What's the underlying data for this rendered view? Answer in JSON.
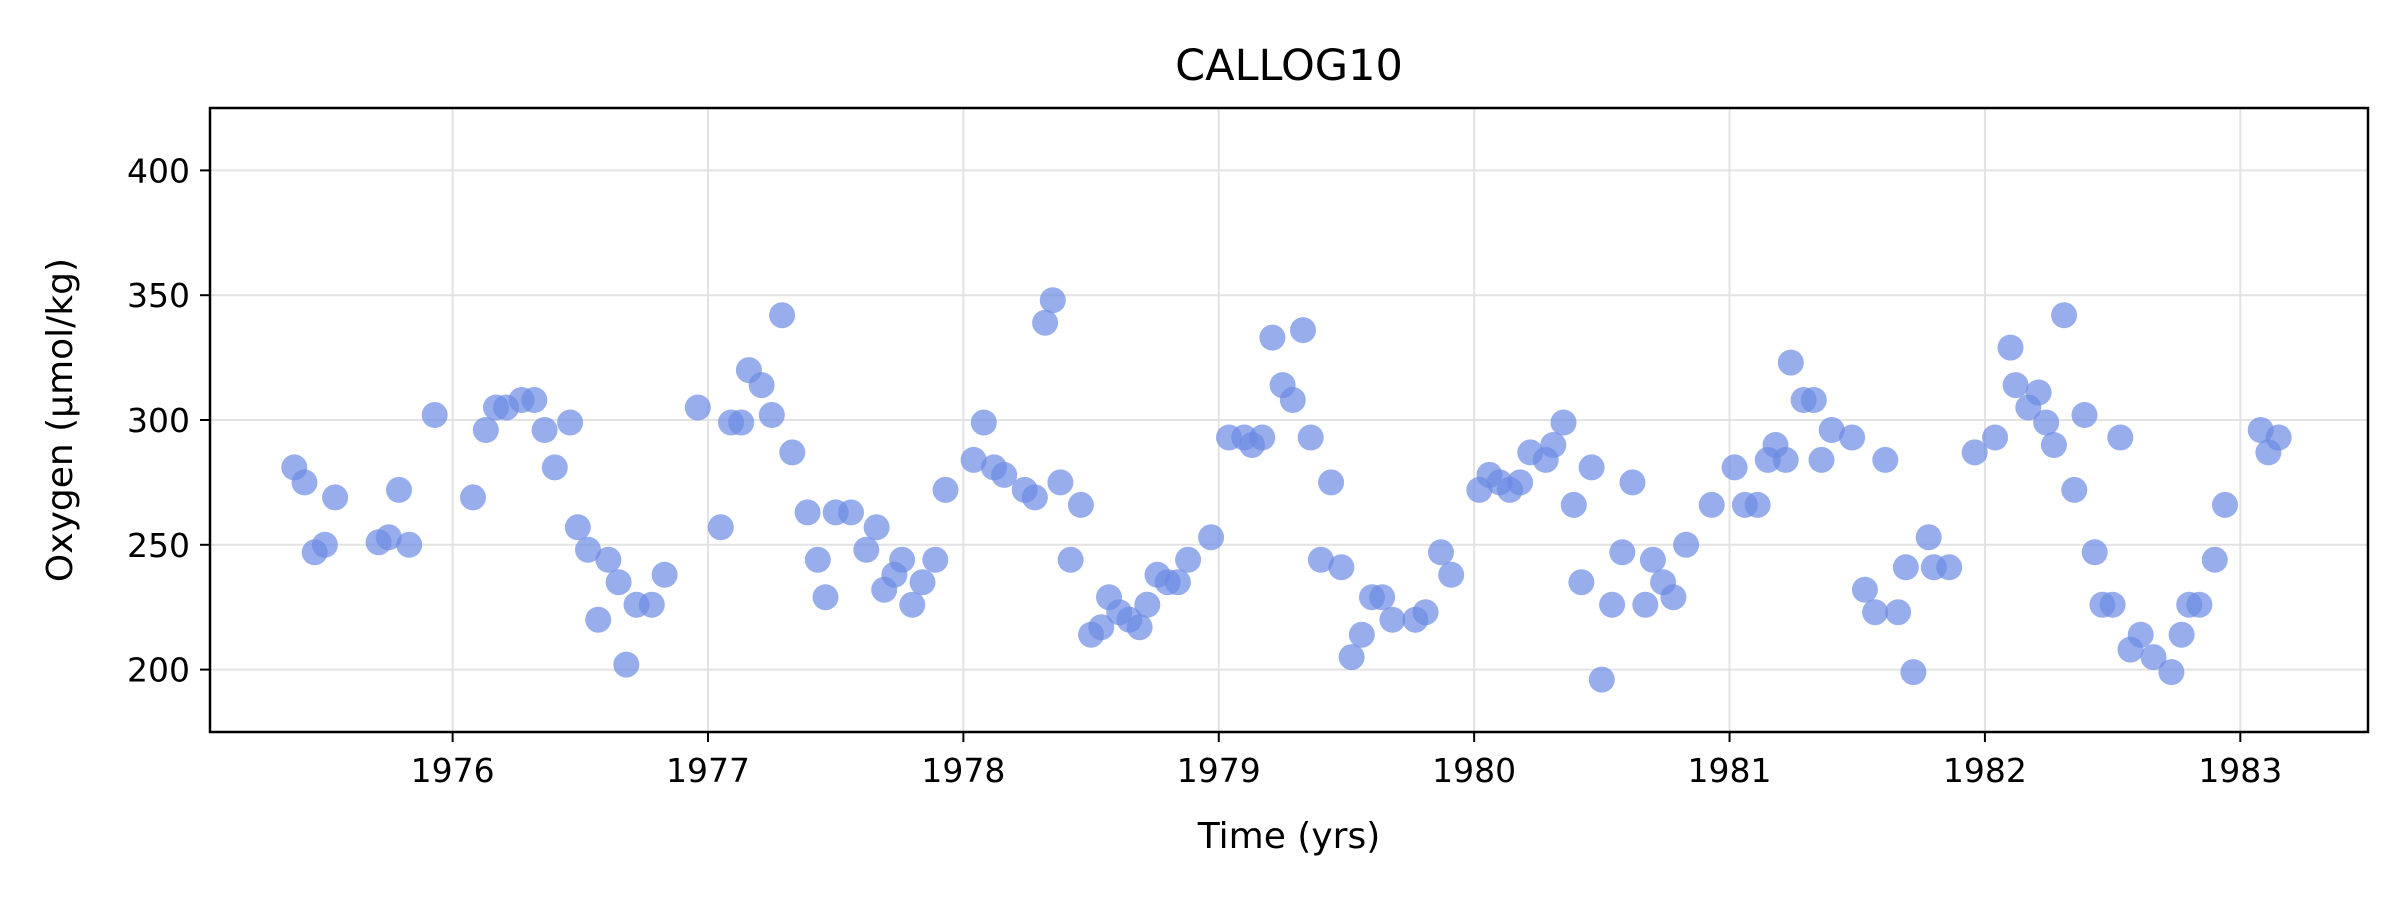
{
  "chart_data": {
    "type": "scatter",
    "title": "CALLOG10",
    "xlabel": "Time (yrs)",
    "ylabel": "Oxygen (µmol/kg)",
    "xlim": [
      1975.05,
      1983.5
    ],
    "ylim": [
      175,
      425
    ],
    "xticks": [
      1976,
      1977,
      1978,
      1979,
      1980,
      1981,
      1982,
      1983
    ],
    "yticks": [
      200,
      250,
      300,
      350,
      400
    ],
    "grid": true,
    "marker_color": "#6c8ae4",
    "marker_opacity": 0.7,
    "series": [
      {
        "points": [
          [
            1975.38,
            281
          ],
          [
            1975.42,
            275
          ],
          [
            1975.46,
            247
          ],
          [
            1975.5,
            250
          ],
          [
            1975.54,
            269
          ],
          [
            1975.71,
            251
          ],
          [
            1975.75,
            253
          ],
          [
            1975.79,
            272
          ],
          [
            1975.83,
            250
          ],
          [
            1975.93,
            302
          ],
          [
            1976.08,
            269
          ],
          [
            1976.13,
            296
          ],
          [
            1976.17,
            305
          ],
          [
            1976.21,
            305
          ],
          [
            1976.27,
            308
          ],
          [
            1976.32,
            308
          ],
          [
            1976.36,
            296
          ],
          [
            1976.4,
            281
          ],
          [
            1976.46,
            299
          ],
          [
            1976.49,
            257
          ],
          [
            1976.53,
            248
          ],
          [
            1976.57,
            220
          ],
          [
            1976.61,
            244
          ],
          [
            1976.65,
            235
          ],
          [
            1976.68,
            202
          ],
          [
            1976.72,
            226
          ],
          [
            1976.78,
            226
          ],
          [
            1976.83,
            238
          ],
          [
            1976.96,
            305
          ],
          [
            1977.05,
            257
          ],
          [
            1977.09,
            299
          ],
          [
            1977.13,
            299
          ],
          [
            1977.16,
            320
          ],
          [
            1977.21,
            314
          ],
          [
            1977.25,
            302
          ],
          [
            1977.29,
            342
          ],
          [
            1977.33,
            287
          ],
          [
            1977.39,
            263
          ],
          [
            1977.43,
            244
          ],
          [
            1977.46,
            229
          ],
          [
            1977.5,
            263
          ],
          [
            1977.56,
            263
          ],
          [
            1977.62,
            248
          ],
          [
            1977.66,
            257
          ],
          [
            1977.69,
            232
          ],
          [
            1977.73,
            238
          ],
          [
            1977.76,
            244
          ],
          [
            1977.8,
            226
          ],
          [
            1977.84,
            235
          ],
          [
            1977.89,
            244
          ],
          [
            1977.93,
            272
          ],
          [
            1978.04,
            284
          ],
          [
            1978.08,
            299
          ],
          [
            1978.12,
            281
          ],
          [
            1978.16,
            278
          ],
          [
            1978.24,
            272
          ],
          [
            1978.28,
            269
          ],
          [
            1978.32,
            339
          ],
          [
            1978.35,
            348
          ],
          [
            1978.38,
            275
          ],
          [
            1978.42,
            244
          ],
          [
            1978.46,
            266
          ],
          [
            1978.5,
            214
          ],
          [
            1978.54,
            217
          ],
          [
            1978.57,
            229
          ],
          [
            1978.61,
            223
          ],
          [
            1978.65,
            220
          ],
          [
            1978.69,
            217
          ],
          [
            1978.72,
            226
          ],
          [
            1978.76,
            238
          ],
          [
            1978.8,
            235
          ],
          [
            1978.84,
            235
          ],
          [
            1978.88,
            244
          ],
          [
            1978.97,
            253
          ],
          [
            1979.04,
            293
          ],
          [
            1979.1,
            293
          ],
          [
            1979.13,
            290
          ],
          [
            1979.17,
            293
          ],
          [
            1979.21,
            333
          ],
          [
            1979.25,
            314
          ],
          [
            1979.29,
            308
          ],
          [
            1979.33,
            336
          ],
          [
            1979.36,
            293
          ],
          [
            1979.4,
            244
          ],
          [
            1979.44,
            275
          ],
          [
            1979.48,
            241
          ],
          [
            1979.52,
            205
          ],
          [
            1979.56,
            214
          ],
          [
            1979.6,
            229
          ],
          [
            1979.64,
            229
          ],
          [
            1979.68,
            220
          ],
          [
            1979.77,
            220
          ],
          [
            1979.81,
            223
          ],
          [
            1979.87,
            247
          ],
          [
            1979.91,
            238
          ],
          [
            1980.02,
            272
          ],
          [
            1980.06,
            278
          ],
          [
            1980.1,
            275
          ],
          [
            1980.14,
            272
          ],
          [
            1980.18,
            275
          ],
          [
            1980.22,
            287
          ],
          [
            1980.28,
            284
          ],
          [
            1980.31,
            290
          ],
          [
            1980.35,
            299
          ],
          [
            1980.39,
            266
          ],
          [
            1980.42,
            235
          ],
          [
            1980.46,
            281
          ],
          [
            1980.5,
            196
          ],
          [
            1980.54,
            226
          ],
          [
            1980.58,
            247
          ],
          [
            1980.62,
            275
          ],
          [
            1980.67,
            226
          ],
          [
            1980.7,
            244
          ],
          [
            1980.74,
            235
          ],
          [
            1980.78,
            229
          ],
          [
            1980.83,
            250
          ],
          [
            1980.93,
            266
          ],
          [
            1981.02,
            281
          ],
          [
            1981.06,
            266
          ],
          [
            1981.11,
            266
          ],
          [
            1981.15,
            284
          ],
          [
            1981.18,
            290
          ],
          [
            1981.22,
            284
          ],
          [
            1981.24,
            323
          ],
          [
            1981.29,
            308
          ],
          [
            1981.33,
            308
          ],
          [
            1981.36,
            284
          ],
          [
            1981.4,
            296
          ],
          [
            1981.48,
            293
          ],
          [
            1981.53,
            232
          ],
          [
            1981.57,
            223
          ],
          [
            1981.61,
            284
          ],
          [
            1981.66,
            223
          ],
          [
            1981.69,
            241
          ],
          [
            1981.72,
            199
          ],
          [
            1981.78,
            253
          ],
          [
            1981.8,
            241
          ],
          [
            1981.86,
            241
          ],
          [
            1981.96,
            287
          ],
          [
            1982.04,
            293
          ],
          [
            1982.1,
            329
          ],
          [
            1982.12,
            314
          ],
          [
            1982.17,
            305
          ],
          [
            1982.21,
            311
          ],
          [
            1982.24,
            299
          ],
          [
            1982.27,
            290
          ],
          [
            1982.31,
            342
          ],
          [
            1982.35,
            272
          ],
          [
            1982.39,
            302
          ],
          [
            1982.43,
            247
          ],
          [
            1982.46,
            226
          ],
          [
            1982.5,
            226
          ],
          [
            1982.53,
            293
          ],
          [
            1982.57,
            208
          ],
          [
            1982.61,
            214
          ],
          [
            1982.66,
            205
          ],
          [
            1982.73,
            199
          ],
          [
            1982.77,
            214
          ],
          [
            1982.8,
            226
          ],
          [
            1982.84,
            226
          ],
          [
            1982.9,
            244
          ],
          [
            1982.94,
            266
          ],
          [
            1983.08,
            296
          ],
          [
            1983.11,
            287
          ],
          [
            1983.15,
            293
          ]
        ]
      }
    ]
  }
}
